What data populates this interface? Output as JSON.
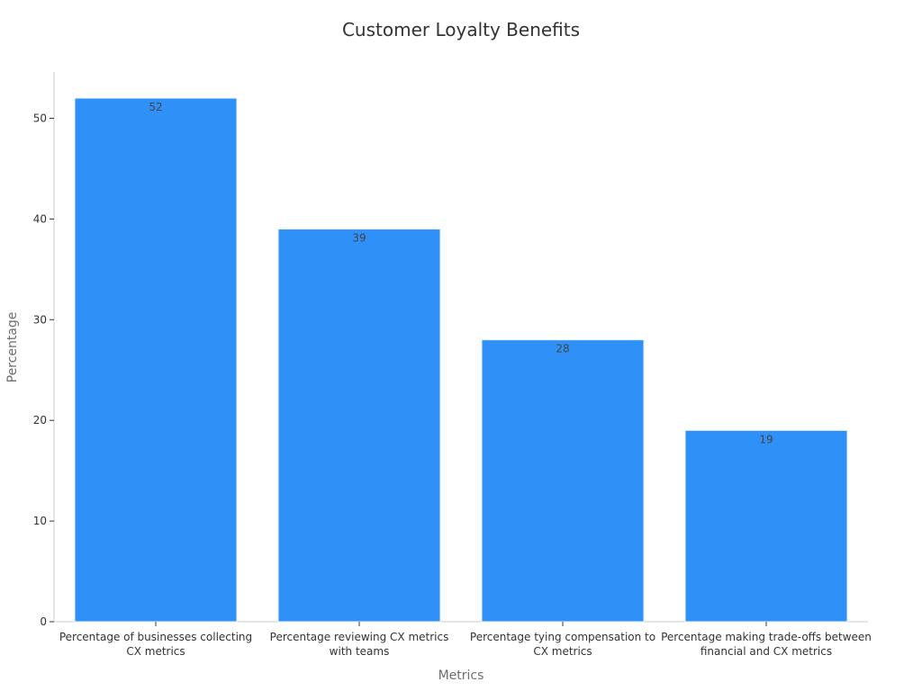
{
  "chart_data": {
    "type": "bar",
    "title": "Customer Loyalty Benefits",
    "xlabel": "Metrics",
    "ylabel": "Percentage",
    "categories": [
      [
        "Percentage of businesses collecting",
        "CX metrics"
      ],
      [
        "Percentage reviewing CX metrics",
        "with teams"
      ],
      [
        "Percentage tying compensation to",
        "CX metrics"
      ],
      [
        "Percentage making trade-offs between",
        "financial and CX metrics"
      ]
    ],
    "values": [
      52,
      39,
      28,
      19
    ],
    "data_labels": [
      "52",
      "39",
      "28",
      "19"
    ],
    "yticks": [
      0,
      10,
      20,
      30,
      40,
      50
    ],
    "ylim": [
      0,
      54.6
    ],
    "grid": false,
    "legend": "none",
    "colors": {
      "bar": "#2f91f8",
      "bar_edge": "#e8f2ff",
      "axis": "#cccccc",
      "text": "#333333",
      "axis_title": "#6e6e6e"
    }
  }
}
